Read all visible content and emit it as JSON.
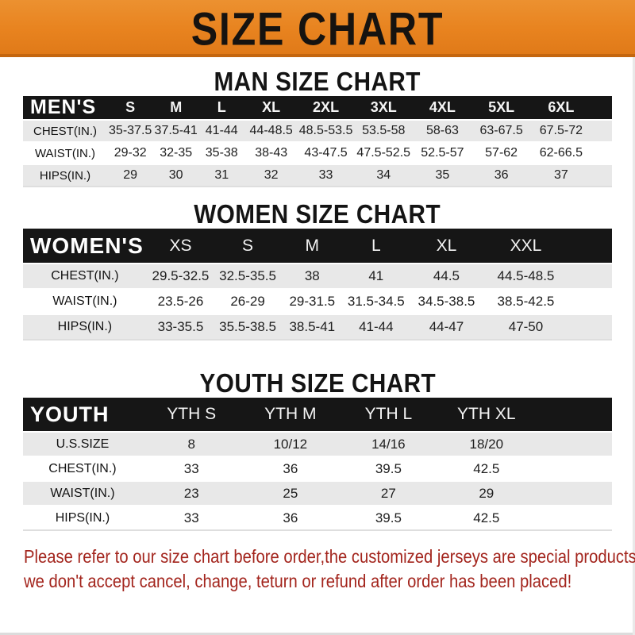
{
  "banner": {
    "title": "SIZE CHART",
    "bg_color": "#e8831f",
    "border_color": "#c4660f",
    "text_color": "#161310"
  },
  "sections": [
    {
      "id": "men",
      "title": "MAN SIZE CHART",
      "table": {
        "corner": "MEN'S",
        "columns": [
          "S",
          "M",
          "L",
          "XL",
          "2XL",
          "3XL",
          "4XL",
          "5XL",
          "6XL"
        ],
        "rows": [
          {
            "label": "CHEST(IN.)",
            "values": [
              "35-37.5",
              "37.5-41",
              "41-44",
              "44-48.5",
              "48.5-53.5",
              "53.5-58",
              "58-63",
              "63-67.5",
              "67.5-72"
            ]
          },
          {
            "label": "WAIST(IN.)",
            "values": [
              "29-32",
              "32-35",
              "35-38",
              "38-43",
              "43-47.5",
              "47.5-52.5",
              "52.5-57",
              "57-62",
              "62-66.5"
            ]
          },
          {
            "label": "HIPS(IN.)",
            "values": [
              "29",
              "30",
              "31",
              "32",
              "33",
              "34",
              "35",
              "36",
              "37"
            ]
          }
        ]
      }
    },
    {
      "id": "women",
      "title": "WOMEN SIZE CHART",
      "table": {
        "corner": "WOMEN'S",
        "columns": [
          "XS",
          "S",
          "M",
          "L",
          "XL",
          "XXL"
        ],
        "rows": [
          {
            "label": "CHEST(IN.)",
            "values": [
              "29.5-32.5",
              "32.5-35.5",
              "38",
              "41",
              "44.5",
              "44.5-48.5"
            ]
          },
          {
            "label": "WAIST(IN.)",
            "values": [
              "23.5-26",
              "26-29",
              "29-31.5",
              "31.5-34.5",
              "34.5-38.5",
              "38.5-42.5"
            ]
          },
          {
            "label": "HIPS(IN.)",
            "values": [
              "33-35.5",
              "35.5-38.5",
              "38.5-41",
              "41-44",
              "44-47",
              "47-50"
            ]
          }
        ]
      }
    },
    {
      "id": "youth",
      "title": "YOUTH SIZE CHART",
      "table": {
        "corner": "YOUTH",
        "columns": [
          "YTH S",
          "YTH M",
          "YTH L",
          "YTH XL"
        ],
        "rows": [
          {
            "label": "U.S.SIZE",
            "values": [
              "8",
              "10/12",
              "14/16",
              "18/20"
            ]
          },
          {
            "label": "CHEST(IN.)",
            "values": [
              "33",
              "36",
              "39.5",
              "42.5"
            ]
          },
          {
            "label": "WAIST(IN.)",
            "values": [
              "23",
              "25",
              "27",
              "29"
            ]
          },
          {
            "label": "HIPS(IN.)",
            "values": [
              "33",
              "36",
              "39.5",
              "42.5"
            ]
          }
        ]
      }
    }
  ],
  "footer": {
    "line1": "Please refer to our size chart before order,the customized jerseys are special products,",
    "line2": "we don't accept cancel, change, teturn or refund after order has been placed!",
    "text_color": "#a3251d"
  }
}
